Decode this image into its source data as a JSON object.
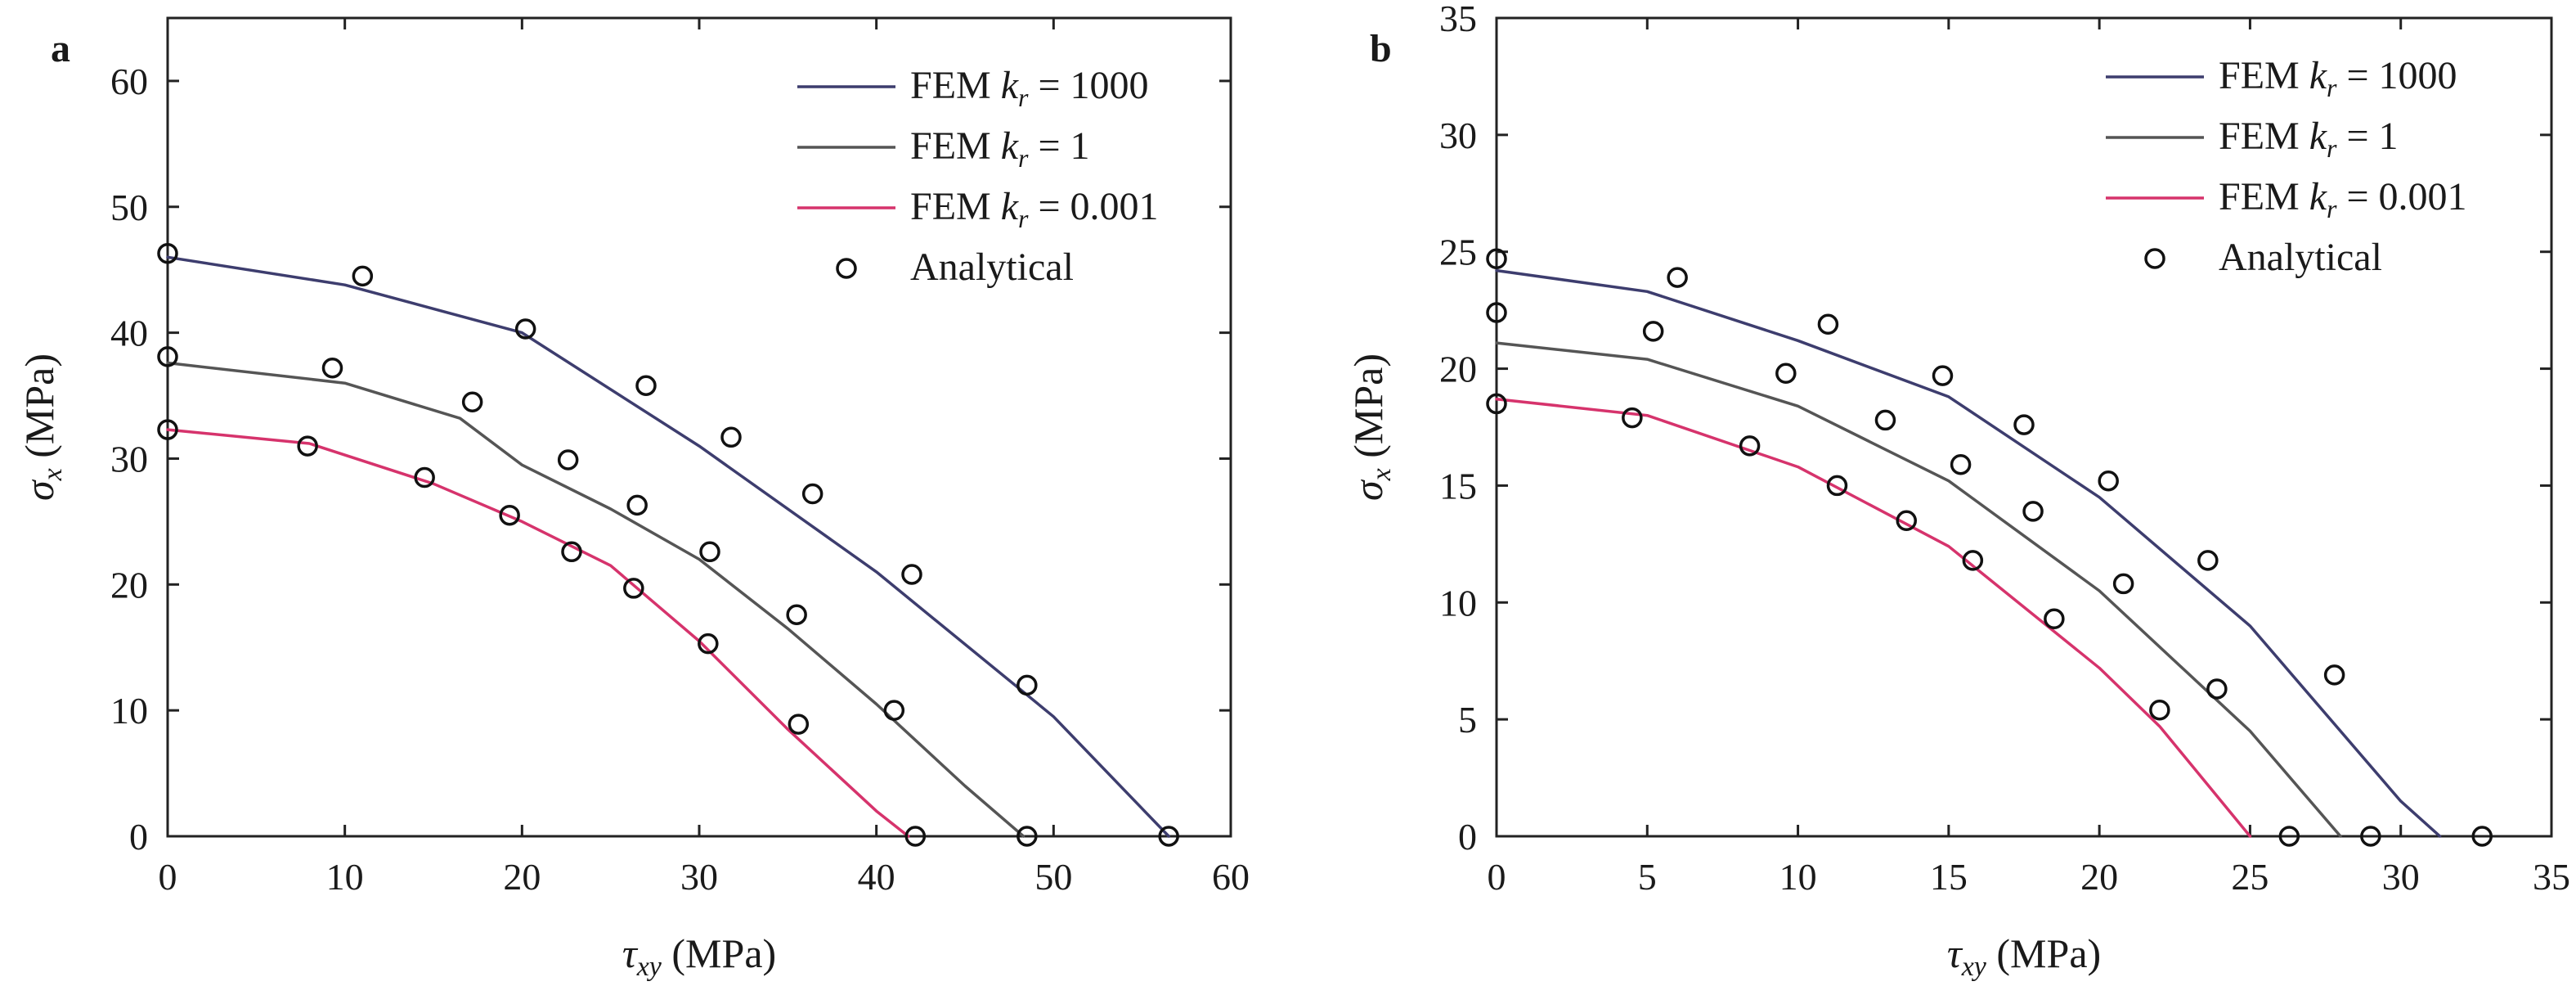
{
  "chart_data": [
    {
      "type": "line",
      "panel_label": "a",
      "xlabel": {
        "symbol": "τ",
        "sub": "xy",
        "unit": " (MPa)"
      },
      "ylabel": {
        "symbol": "σ",
        "sub": "x",
        "unit": " (MPa)"
      },
      "xlim": [
        0,
        60
      ],
      "ylim": [
        0,
        65
      ],
      "xticks": [
        0,
        10,
        20,
        30,
        40,
        50,
        60
      ],
      "yticks": [
        0,
        10,
        20,
        30,
        40,
        50,
        60
      ],
      "grid": false,
      "legend_position": "top-right",
      "series": [
        {
          "name": "FEM kr = 1000",
          "legend": {
            "prefix": "FEM ",
            "var": "k",
            "sub": "r",
            "suffix": " = 1000"
          },
          "color": "#3d3d6e",
          "x": [
            0,
            10,
            20,
            30,
            40,
            50,
            56.5
          ],
          "y": [
            46.0,
            43.8,
            40.0,
            31.0,
            21.0,
            9.5,
            0
          ]
        },
        {
          "name": "FEM kr = 1",
          "legend": {
            "prefix": "FEM ",
            "var": "k",
            "sub": "r",
            "suffix": " = 1"
          },
          "color": "#555555",
          "x": [
            0,
            10,
            16.5,
            20,
            25,
            30,
            35,
            40,
            45,
            48.3
          ],
          "y": [
            37.6,
            36.0,
            33.2,
            29.5,
            26.0,
            22.0,
            16.5,
            10.5,
            4.0,
            0
          ]
        },
        {
          "name": "FEM kr = 0.001",
          "legend": {
            "prefix": "FEM ",
            "var": "k",
            "sub": "r",
            "suffix": " = 0.001"
          },
          "color": "#d6336c",
          "x": [
            0,
            8,
            15,
            20,
            25,
            30,
            35,
            40,
            41.8
          ],
          "y": [
            32.3,
            31.2,
            28.0,
            25.0,
            21.5,
            15.5,
            8.5,
            2.0,
            0
          ]
        },
        {
          "name": "Analytical",
          "legend": {
            "prefix": "Analytical",
            "var": "",
            "sub": "",
            "suffix": ""
          },
          "color": "#111111",
          "marker_only": true,
          "x": [
            0,
            11,
            20.2,
            27,
            31.8,
            36.4,
            42,
            48.5,
            56.5,
            0,
            9.3,
            17.2,
            22.6,
            26.5,
            30.6,
            35.5,
            41,
            48.5,
            0,
            7.9,
            14.5,
            19.3,
            22.8,
            26.3,
            30.5,
            35.6,
            42.2
          ],
          "y": [
            46.3,
            44.5,
            40.3,
            35.8,
            31.7,
            27.2,
            20.8,
            12.0,
            0,
            38.1,
            37.2,
            34.5,
            29.9,
            26.3,
            22.6,
            17.6,
            10.0,
            0,
            32.3,
            31.0,
            28.5,
            25.5,
            22.6,
            19.7,
            15.3,
            8.9,
            0
          ]
        }
      ]
    },
    {
      "type": "line",
      "panel_label": "b",
      "xlabel": {
        "symbol": "τ",
        "sub": "xy",
        "unit": " (MPa)"
      },
      "ylabel": {
        "symbol": "σ",
        "sub": "x",
        "unit": " (MPa)"
      },
      "xlim": [
        0,
        35
      ],
      "ylim": [
        0,
        35
      ],
      "xticks": [
        0,
        5,
        10,
        15,
        20,
        25,
        30,
        35
      ],
      "yticks": [
        0,
        5,
        10,
        15,
        20,
        25,
        30,
        35
      ],
      "grid": false,
      "legend_position": "top-right",
      "series": [
        {
          "name": "FEM kr = 1000",
          "legend": {
            "prefix": "FEM ",
            "var": "k",
            "sub": "r",
            "suffix": " = 1000"
          },
          "color": "#3d3d6e",
          "x": [
            0,
            5,
            10,
            15,
            20,
            25,
            30,
            31.3
          ],
          "y": [
            24.2,
            23.3,
            21.2,
            18.8,
            14.5,
            9.0,
            1.5,
            0
          ]
        },
        {
          "name": "FEM kr = 1",
          "legend": {
            "prefix": "FEM ",
            "var": "k",
            "sub": "r",
            "suffix": " = 1"
          },
          "color": "#555555",
          "x": [
            0,
            5,
            10,
            15,
            20,
            25,
            28
          ],
          "y": [
            21.1,
            20.4,
            18.4,
            15.2,
            10.5,
            4.5,
            0
          ]
        },
        {
          "name": "FEM kr = 0.001",
          "legend": {
            "prefix": "FEM ",
            "var": "k",
            "sub": "r",
            "suffix": " = 0.001"
          },
          "color": "#d6336c",
          "x": [
            0,
            5,
            10,
            15,
            20,
            22,
            25
          ],
          "y": [
            18.7,
            18.0,
            15.8,
            12.4,
            7.2,
            4.7,
            0
          ]
        },
        {
          "name": "Analytical",
          "legend": {
            "prefix": "Analytical",
            "var": "",
            "sub": "",
            "suffix": ""
          },
          "color": "#111111",
          "marker_only": true,
          "x": [
            0,
            6,
            11,
            14.8,
            17.5,
            20.3,
            23.6,
            27.8,
            32.7,
            0,
            5.2,
            9.6,
            12.9,
            15.4,
            17.8,
            20.8,
            23.9,
            29,
            0,
            4.5,
            8.4,
            11.3,
            13.6,
            15.8,
            18.5,
            22,
            26.3
          ],
          "y": [
            24.7,
            23.9,
            21.9,
            19.7,
            17.6,
            15.2,
            11.8,
            6.9,
            0,
            22.4,
            21.6,
            19.8,
            17.8,
            15.9,
            13.9,
            10.8,
            6.3,
            0,
            18.5,
            17.9,
            16.7,
            15.0,
            13.5,
            11.8,
            9.3,
            5.4,
            0
          ]
        }
      ]
    }
  ]
}
